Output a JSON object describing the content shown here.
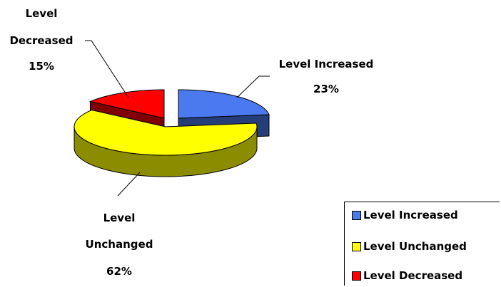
{
  "chart_data": {
    "type": "pie",
    "three_d": true,
    "categories": [
      "Level Increased",
      "Level Unchanged",
      "Level Decreased"
    ],
    "values": [
      23,
      62,
      15
    ],
    "unit": "%",
    "colors": {
      "Level Increased": "#4a79f0",
      "Level Unchanged": "#ffff00",
      "Level Decreased": "#ff0000"
    },
    "legend_position": "bottom-right",
    "data_labels": {
      "increased": {
        "lines": [
          "Level Increased",
          "23%"
        ]
      },
      "unchanged": {
        "lines": [
          "Level",
          "Unchanged",
          "62%"
        ]
      },
      "decreased": {
        "lines": [
          "Level",
          "Decreased",
          "15%"
        ]
      }
    }
  },
  "legend": {
    "items": [
      {
        "label": "Level Increased",
        "color": "#4a79f0"
      },
      {
        "label": "Level Unchanged",
        "color": "#ffff00"
      },
      {
        "label": "Level Decreased",
        "color": "#ff0000"
      }
    ]
  }
}
